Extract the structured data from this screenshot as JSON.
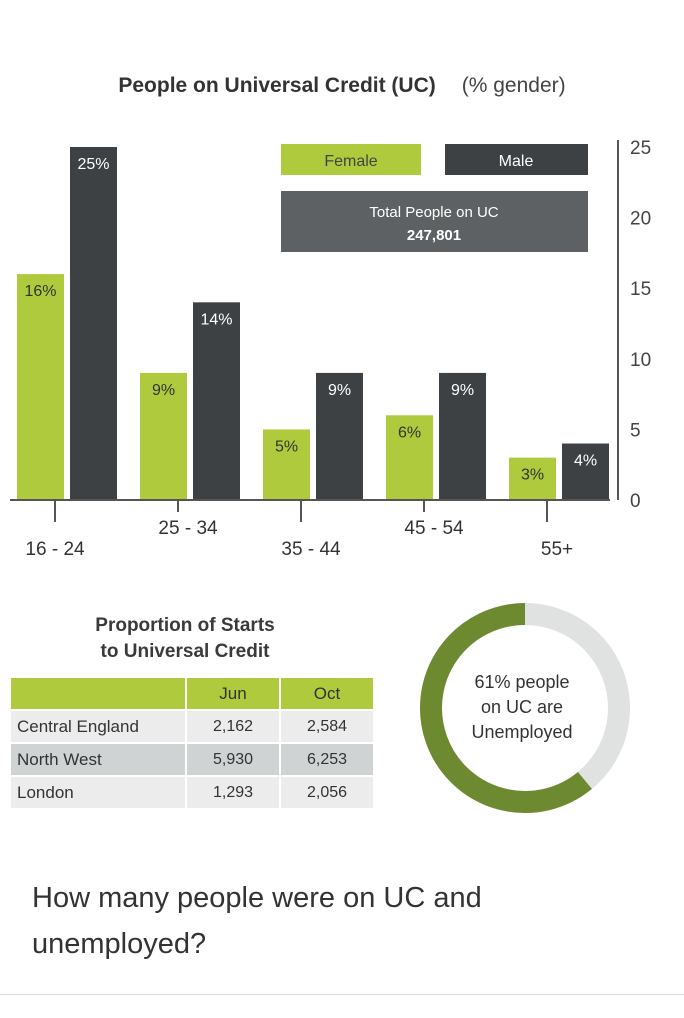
{
  "chart_data": {
    "type": "bar",
    "title": "People on Universal Credit (UC)",
    "subtitle": "(% gender)",
    "categories": [
      "16 - 24",
      "25 - 34",
      "35 - 44",
      "45 - 54",
      "55+"
    ],
    "series": [
      {
        "name": "Female",
        "color": "#afcb3d",
        "values": [
          16,
          9,
          5,
          6,
          3
        ],
        "labels": [
          "16%",
          "9%",
          "5%",
          "6%",
          "3%"
        ]
      },
      {
        "name": "Male",
        "color": "#3d4144",
        "values": [
          25,
          14,
          9,
          9,
          4
        ],
        "labels": [
          "25%",
          "14%",
          "9%",
          "9%",
          "4%"
        ]
      }
    ],
    "ylim": [
      0,
      25
    ],
    "yticks": [
      "0",
      "5",
      "10",
      "15",
      "20",
      "25"
    ],
    "legend_position": "top-right",
    "total_box": {
      "label": "Total People on UC",
      "value": "247,801"
    }
  },
  "table": {
    "title_line1": "Proportion of Starts",
    "title_line2": "to Universal Credit",
    "columns": [
      "",
      "Jun",
      "Oct"
    ],
    "rows": [
      {
        "region": "Central England",
        "jun": "2,162",
        "oct": "2,584"
      },
      {
        "region": "North West",
        "jun": "5,930",
        "oct": "6,253"
      },
      {
        "region": "London",
        "jun": "1,293",
        "oct": "2,056"
      }
    ]
  },
  "donut": {
    "percent": 61,
    "color": "#6e8a31",
    "track_color": "#e0e1e1",
    "label_line1": "61% people",
    "label_line2": "on UC are",
    "label_line3": "Unemployed"
  },
  "question": "How many people were on UC and unemployed?"
}
